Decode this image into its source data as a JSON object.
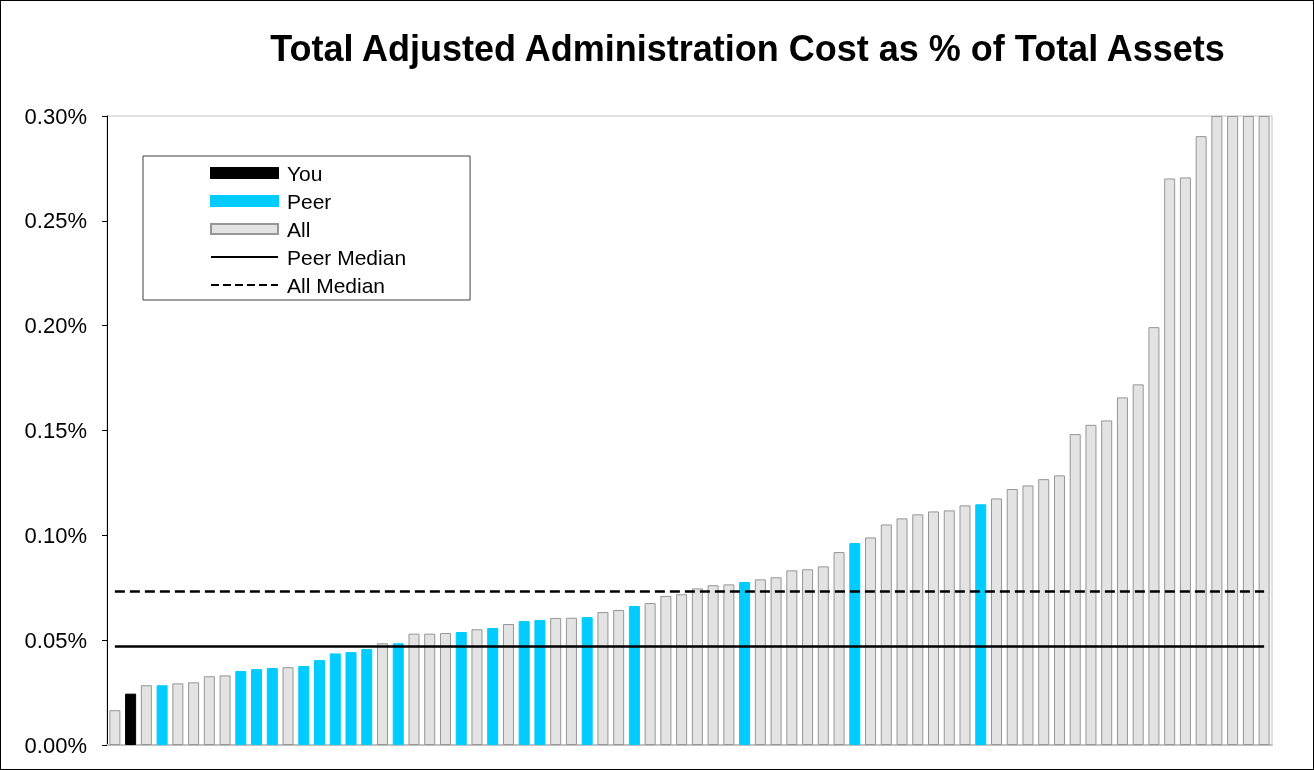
{
  "chart_data": {
    "type": "bar",
    "title": "Total Adjusted Administration Cost as % of Total Assets",
    "categories": [
      null,
      null,
      null,
      null,
      null,
      null,
      null,
      null,
      null,
      null,
      null,
      null,
      null,
      null,
      null,
      null,
      null,
      null,
      null,
      null,
      null,
      null,
      null,
      null,
      null,
      null,
      null,
      null,
      null,
      null,
      null,
      null,
      null,
      null,
      null,
      null,
      null,
      null,
      null,
      null,
      null,
      null,
      null,
      null,
      null,
      null,
      null,
      null,
      null,
      null,
      null,
      null,
      null,
      null,
      null,
      null,
      null,
      null,
      null,
      null,
      null,
      null,
      null,
      null,
      null,
      null,
      null,
      null,
      null,
      null,
      null,
      null,
      null,
      null
    ],
    "series": [
      {
        "name": "You",
        "color": "#000000",
        "values": [
          null,
          0.0245,
          null,
          null,
          null,
          null,
          null,
          null,
          null,
          null,
          null,
          null,
          null,
          null,
          null,
          null,
          null,
          null,
          null,
          null,
          null,
          null,
          null,
          null,
          null,
          null,
          null,
          null,
          null,
          null,
          null,
          null,
          null,
          null,
          null,
          null,
          null,
          null,
          null,
          null,
          null,
          null,
          null,
          null,
          null,
          null,
          null,
          null,
          null,
          null,
          null,
          null,
          null,
          null,
          null,
          null,
          null,
          null,
          null,
          null,
          null,
          null,
          null,
          null,
          null,
          null,
          null,
          null,
          null,
          null,
          null,
          null,
          null,
          null
        ]
      },
      {
        "name": "Peer",
        "color": "#00ccff",
        "values": [
          null,
          null,
          null,
          0.0285,
          null,
          null,
          null,
          null,
          0.0353,
          0.0362,
          0.0367,
          null,
          0.0377,
          0.0405,
          0.0437,
          0.0443,
          0.0458,
          null,
          0.0485,
          null,
          null,
          null,
          0.0539,
          null,
          0.0558,
          null,
          0.0591,
          0.0596,
          null,
          null,
          0.061,
          null,
          null,
          0.0663,
          null,
          null,
          null,
          null,
          null,
          null,
          0.0777,
          null,
          null,
          null,
          null,
          null,
          null,
          0.0963,
          null,
          null,
          null,
          null,
          null,
          null,
          null,
          0.1148,
          null,
          null,
          null,
          null,
          null,
          null,
          null,
          null,
          null,
          null,
          null,
          null,
          null,
          null,
          null,
          null,
          null,
          null
        ]
      },
      {
        "name": "All",
        "color": "#e3e3e3",
        "values": [
          0.0166,
          null,
          0.0285,
          null,
          0.0294,
          0.0299,
          0.0328,
          0.0332,
          null,
          null,
          null,
          0.0371,
          null,
          null,
          null,
          null,
          null,
          0.0485,
          null,
          0.0531,
          0.0531,
          0.0534,
          null,
          0.0552,
          null,
          0.0577,
          null,
          null,
          0.0606,
          0.0607,
          null,
          0.0634,
          0.0644,
          null,
          0.0677,
          0.0711,
          0.0719,
          0.0747,
          0.0762,
          0.0766,
          null,
          0.079,
          0.08,
          0.0833,
          0.0838,
          0.0852,
          0.092,
          null,
          0.099,
          0.1052,
          0.1081,
          0.11,
          0.1114,
          0.1119,
          0.1143,
          null,
          0.1176,
          0.1221,
          0.1238,
          0.1268,
          0.1286,
          0.1483,
          0.1527,
          0.1548,
          0.1658,
          0.172,
          0.1993,
          0.2702,
          0.2707,
          0.2904,
          0.3,
          0.3,
          0.3,
          0.3
        ]
      }
    ],
    "ylim": [
      0,
      0.3
    ],
    "yticks": [
      {
        "value": 0,
        "label": "0.00%"
      },
      {
        "value": 0.05,
        "label": "0.05%"
      },
      {
        "value": 0.1,
        "label": "0.10%"
      },
      {
        "value": 0.15,
        "label": "0.15%"
      },
      {
        "value": 0.2,
        "label": "0.20%"
      },
      {
        "value": 0.25,
        "label": "0.25%"
      },
      {
        "value": 0.3,
        "label": "0.30%"
      }
    ],
    "ref_lines": [
      {
        "axis": "y",
        "value": 0.0472,
        "label": "Peer Median",
        "color": "#000000",
        "line_style": "solid"
      },
      {
        "axis": "y",
        "value": 0.0731,
        "label": "All Median",
        "color": "#000000",
        "line_style": "dashed"
      }
    ],
    "grid": false,
    "legend": "top left",
    "tick_labels": "y"
  }
}
